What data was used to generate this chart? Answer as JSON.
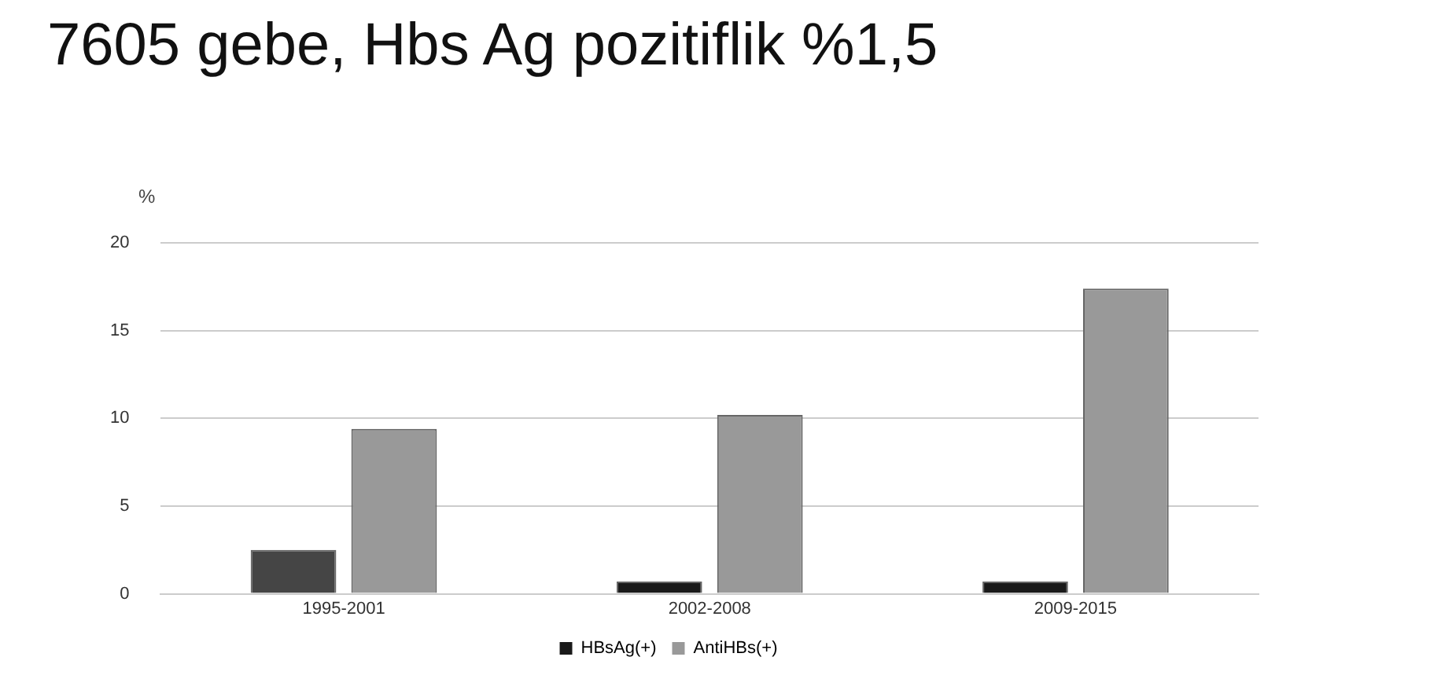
{
  "chart_data": {
    "type": "bar",
    "title": "7605 gebe,  Hbs Ag  pozitiflik  %1,5",
    "ylabel": "%",
    "categories": [
      "1995-2001",
      "2002-2008",
      "2009-2015"
    ],
    "series": [
      {
        "name": "HBsAg(+)",
        "color": "#1a1a1a",
        "colors": [
          "#454545",
          "#1a1a1a",
          "#1a1a1a"
        ],
        "values": [
          2.5,
          0.7,
          0.7
        ]
      },
      {
        "name": "AntiHBs(+)",
        "color": "#999999",
        "values": [
          9.4,
          10.2,
          17.4
        ]
      }
    ],
    "ylim": [
      0,
      20
    ],
    "yticks": [
      0,
      5,
      10,
      15,
      20
    ],
    "grid": "y",
    "legend": "bottom"
  }
}
